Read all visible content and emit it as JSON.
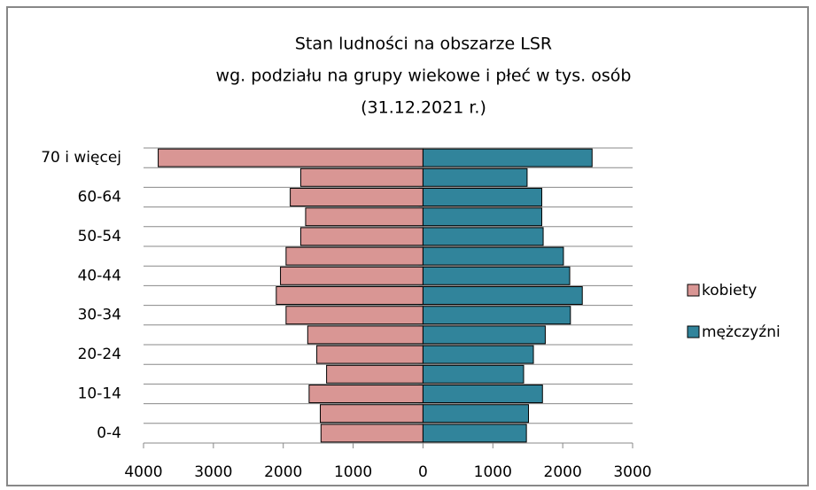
{
  "chart_data": {
    "type": "pyramid",
    "title": [
      "Stan ludności na obszarze LSR",
      "wg. podziału na grupy wiekowe i płeć w tys. osób",
      "(31.12.2021 r.)"
    ],
    "categories": [
      "0-4",
      null,
      "10-14",
      null,
      "20-24",
      null,
      "30-34",
      null,
      "40-44",
      null,
      "50-54",
      null,
      "60-64",
      null,
      "70 i więcej"
    ],
    "series": [
      {
        "name": "kobiety",
        "color": "#d99694",
        "values": [
          -1460,
          -1470,
          -1630,
          -1380,
          -1520,
          -1650,
          -1960,
          -2100,
          -2040,
          -1960,
          -1750,
          -1680,
          -1900,
          -1750,
          -3790
        ]
      },
      {
        "name": "mężczyźni",
        "color": "#31849b",
        "values": [
          1480,
          1510,
          1710,
          1440,
          1580,
          1750,
          2110,
          2280,
          2100,
          2010,
          1720,
          1700,
          1700,
          1490,
          2420
        ]
      }
    ],
    "xlim": [
      -4000,
      3000
    ],
    "xticks": [
      {
        "value": -4000,
        "label": "4000"
      },
      {
        "value": -3000,
        "label": "3000"
      },
      {
        "value": -2000,
        "label": "2000"
      },
      {
        "value": -1000,
        "label": "1000"
      },
      0,
      1000,
      2000,
      3000
    ],
    "legend": "right"
  }
}
